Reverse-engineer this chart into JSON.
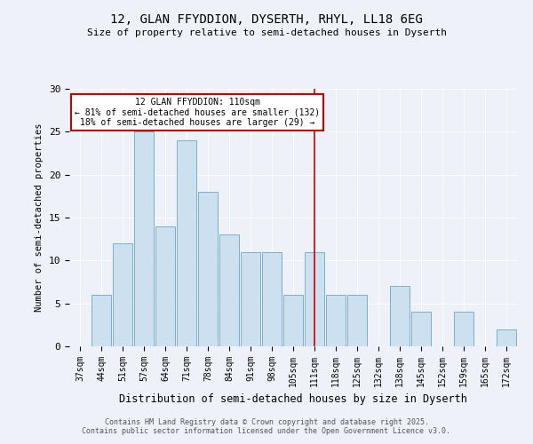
{
  "title1": "12, GLAN FFYDDION, DYSERTH, RHYL, LL18 6EG",
  "title2": "Size of property relative to semi-detached houses in Dyserth",
  "xlabel": "Distribution of semi-detached houses by size in Dyserth",
  "ylabel": "Number of semi-detached properties",
  "bar_labels": [
    "37sqm",
    "44sqm",
    "51sqm",
    "57sqm",
    "64sqm",
    "71sqm",
    "78sqm",
    "84sqm",
    "91sqm",
    "98sqm",
    "105sqm",
    "111sqm",
    "118sqm",
    "125sqm",
    "132sqm",
    "138sqm",
    "145sqm",
    "152sqm",
    "159sqm",
    "165sqm",
    "172sqm"
  ],
  "bar_values": [
    0,
    6,
    12,
    25,
    14,
    24,
    18,
    13,
    11,
    11,
    6,
    11,
    6,
    6,
    0,
    7,
    4,
    0,
    4,
    0,
    2
  ],
  "bar_color": "#cce0f0",
  "bar_edge_color": "#7ab0d4",
  "marker_bin_index": 11,
  "annotation_text": "12 GLAN FFYDDION: 110sqm\n← 81% of semi-detached houses are smaller (132)\n18% of semi-detached houses are larger (29) →",
  "annotation_box_color": "#ffffff",
  "annotation_box_edge_color": "#cc0000",
  "vline_color": "#cc0000",
  "footer_text": "Contains HM Land Registry data © Crown copyright and database right 2025.\nContains public sector information licensed under the Open Government Licence v3.0.",
  "ylim": [
    0,
    30
  ],
  "background_color": "#eef2f8",
  "grid_color": "#ffffff"
}
